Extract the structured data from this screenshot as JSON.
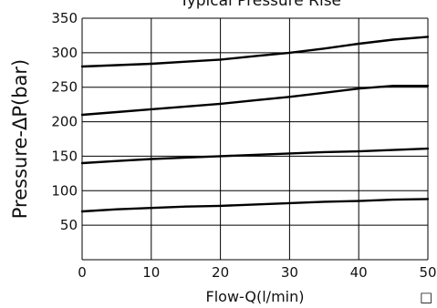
{
  "chart_data": {
    "type": "line",
    "title": "Typical Pressure Rise",
    "xlabel": "Flow-Q(l/min)",
    "ylabel": "Pressure-ΔP(bar)",
    "xlim": [
      0,
      50
    ],
    "ylim": [
      0,
      350
    ],
    "x_ticks": [
      0,
      10,
      20,
      30,
      40,
      50
    ],
    "y_ticks": [
      50,
      100,
      150,
      200,
      250,
      300,
      350
    ],
    "grid": true,
    "series": [
      {
        "x": [
          0,
          5,
          10,
          15,
          20,
          25,
          30,
          35,
          40,
          45,
          50
        ],
        "values": [
          280,
          282,
          284,
          287,
          290,
          295,
          300,
          306,
          313,
          319,
          323
        ]
      },
      {
        "x": [
          0,
          5,
          10,
          15,
          20,
          25,
          30,
          35,
          40,
          45,
          50
        ],
        "values": [
          210,
          214,
          218,
          222,
          226,
          231,
          236,
          242,
          248,
          252,
          252
        ]
      },
      {
        "x": [
          0,
          5,
          10,
          15,
          20,
          25,
          30,
          35,
          40,
          45,
          50
        ],
        "values": [
          140,
          143,
          146,
          148,
          150,
          152,
          154,
          156,
          157,
          159,
          161
        ]
      },
      {
        "x": [
          0,
          5,
          10,
          15,
          20,
          25,
          30,
          35,
          40,
          45,
          50
        ],
        "values": [
          70,
          73,
          75,
          77,
          78,
          80,
          82,
          84,
          85,
          87,
          88
        ]
      }
    ]
  },
  "footer_glyph": "□"
}
